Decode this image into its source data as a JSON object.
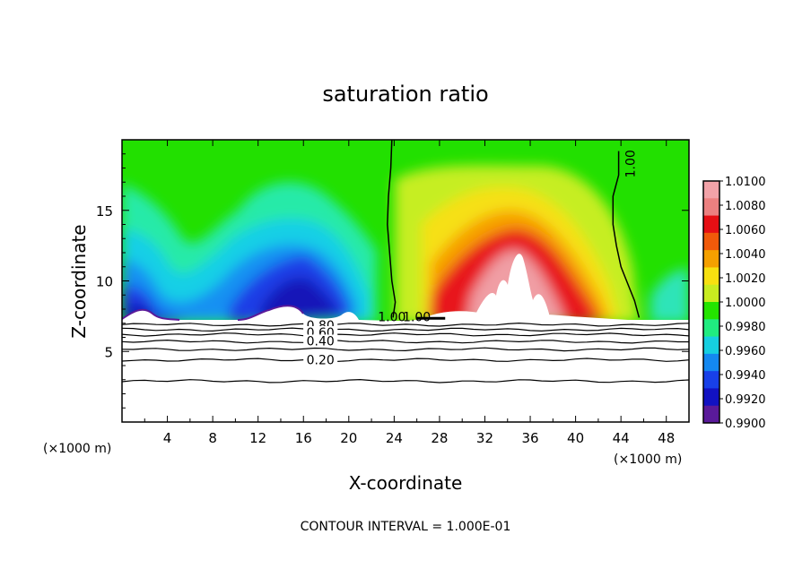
{
  "chart_data": {
    "type": "heatmap",
    "title": "saturation ratio",
    "xlabel": "X-coordinate",
    "ylabel": "Z-coordinate",
    "x_unit": "(×1000 m)",
    "y_unit": "(×1000 m)",
    "xlim": [
      0,
      50
    ],
    "ylim": [
      0,
      20
    ],
    "x_ticks": [
      "4",
      "8",
      "12",
      "16",
      "20",
      "24",
      "28",
      "32",
      "36",
      "40",
      "44",
      "48"
    ],
    "y_ticks": [
      "5",
      "10",
      "15"
    ],
    "footer": "CONTOUR INTERVAL = 1.000E-01",
    "colorbar": {
      "min": 0.99,
      "max": 1.01,
      "labels": [
        "1.0100",
        "1.0080",
        "1.0060",
        "1.0040",
        "1.0020",
        "1.0000",
        "0.9980",
        "0.9960",
        "0.9940",
        "0.9920",
        "0.9900"
      ],
      "colors": [
        "#f2a2a8",
        "#ec8080",
        "#e60f14",
        "#f05a0a",
        "#f5a000",
        "#f7e010",
        "#c8ec20",
        "#24e400",
        "#20ec80",
        "#16cfe0",
        "#1488f0",
        "#1840e8",
        "#1212c2",
        "#5a1a9a"
      ]
    },
    "contour_labels": [
      "1.00",
      "1.00",
      "1.00",
      "0.80",
      "0.60",
      "0.40",
      "0.20"
    ],
    "contour_levels_lower": [
      6.9,
      6.55,
      6.2,
      5.7,
      5.15,
      4.4,
      2.9
    ],
    "cloud_base_km": 7.3
  }
}
